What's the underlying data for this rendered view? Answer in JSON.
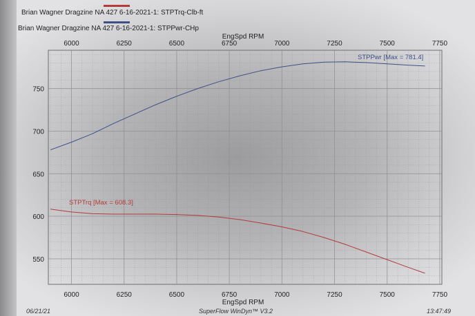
{
  "legend": {
    "torque_entry": "Brian Wagner Dragzine NA 427 6-16-2021-1: STPTrq-Clb-ft",
    "power_entry": "Brian Wagner Dragzine NA 427 6-16-2021-1: STPPwr-CHp"
  },
  "colors": {
    "torque": "#b23a3a",
    "power": "#3c4f86",
    "grid": "#8e8e90"
  },
  "footer": {
    "date": "06/21/21",
    "software": "SuperFlow WinDyn™ V3.2",
    "time": "13:47:49"
  },
  "chart_data": {
    "type": "line",
    "xlabel": "EngSpd RPM",
    "x_ticks": [
      6000,
      6250,
      6500,
      6750,
      7000,
      7250,
      7500,
      7750
    ],
    "x_tick_labels": [
      "6000",
      "6250",
      "6500",
      "6750",
      "7000",
      "7250",
      "7500",
      "7750"
    ],
    "y_ticks": [
      550,
      600,
      650,
      700,
      750
    ],
    "y_tick_labels": [
      "550",
      "600",
      "650",
      "700",
      "750"
    ],
    "xlim": [
      5890,
      7760
    ],
    "ylim": [
      520,
      795
    ],
    "grid": true,
    "series": [
      {
        "name": "STPPwr",
        "label": "STPPwr [Max = 781.4]",
        "x": [
          5900,
          6000,
          6100,
          6200,
          6300,
          6400,
          6500,
          6600,
          6700,
          6800,
          6900,
          7000,
          7100,
          7200,
          7300,
          7400,
          7500,
          7600,
          7680
        ],
        "y": [
          678,
          687,
          697,
          709,
          720,
          731,
          741,
          750,
          758,
          765,
          771,
          775.5,
          779,
          781,
          781.4,
          780.5,
          779,
          777.5,
          776.5
        ]
      },
      {
        "name": "STPTrq",
        "label": "STPTrq [Max = 608.3]",
        "x": [
          5900,
          6000,
          6100,
          6200,
          6300,
          6400,
          6500,
          6600,
          6700,
          6800,
          6900,
          7000,
          7100,
          7200,
          7300,
          7400,
          7500,
          7600,
          7680
        ],
        "y": [
          608.3,
          605,
          603,
          602.5,
          602.5,
          602.5,
          602,
          601,
          599,
          596,
          592,
          587.5,
          582,
          575,
          567,
          558,
          549,
          540,
          533
        ]
      }
    ]
  }
}
